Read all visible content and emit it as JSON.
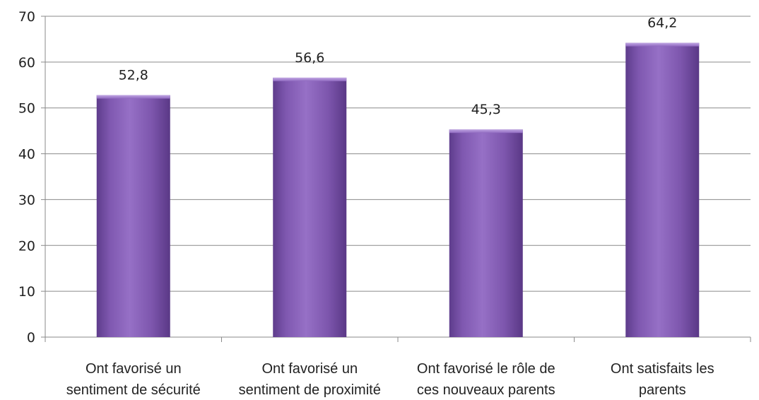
{
  "chart_data": {
    "type": "bar",
    "categories": [
      [
        "Ont favorisé un",
        "sentiment de sécurité"
      ],
      [
        "Ont favorisé un",
        "sentiment de proximité"
      ],
      [
        "Ont favorisé le rôle de",
        "ces nouveaux parents"
      ],
      [
        "Ont satisfaits les",
        "parents"
      ]
    ],
    "values": [
      52.8,
      56.6,
      45.3,
      64.2
    ],
    "data_labels": [
      "52,8",
      "56,6",
      "45,3",
      "64,2"
    ],
    "ylim": [
      0,
      70
    ],
    "yticks": [
      0,
      10,
      20,
      30,
      40,
      50,
      60,
      70
    ],
    "grid": true,
    "bar_color": "#7a54a8"
  }
}
